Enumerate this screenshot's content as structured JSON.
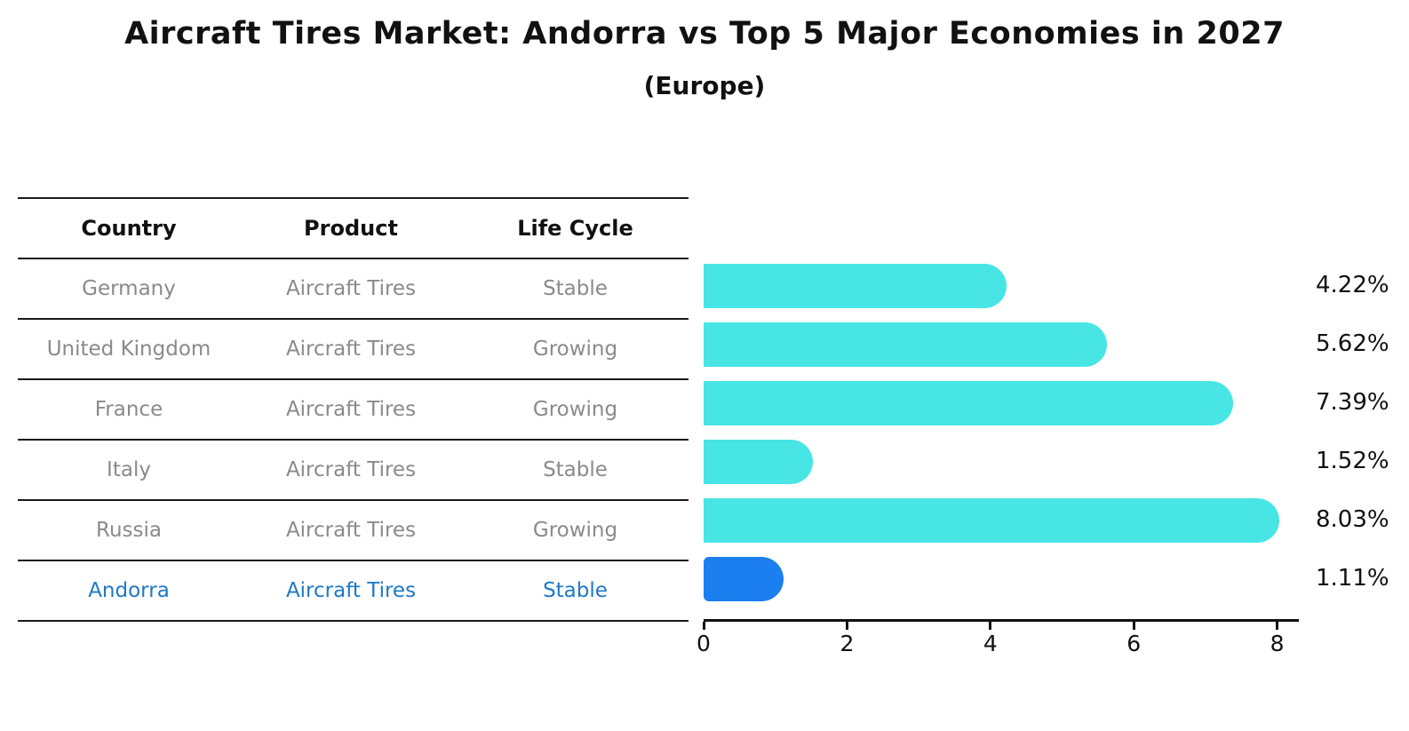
{
  "title": "Aircraft Tires Market: Andorra vs Top 5 Major Economies in 2027",
  "subtitle": "(Europe)",
  "table": {
    "columns": [
      "Country",
      "Product",
      "Life Cycle"
    ],
    "rows": [
      {
        "country": "Germany",
        "product": "Aircraft Tires",
        "life_cycle": "Stable",
        "highlight": false
      },
      {
        "country": "United Kingdom",
        "product": "Aircraft Tires",
        "life_cycle": "Growing",
        "highlight": false
      },
      {
        "country": "France",
        "product": "Aircraft Tires",
        "life_cycle": "Growing",
        "highlight": false
      },
      {
        "country": "Italy",
        "product": "Aircraft Tires",
        "life_cycle": "Stable",
        "highlight": false
      },
      {
        "country": "Russia",
        "product": "Aircraft Tires",
        "life_cycle": "Growing",
        "highlight": false
      },
      {
        "country": "Andorra",
        "product": "Aircraft Tires",
        "life_cycle": "Stable",
        "highlight": true
      }
    ]
  },
  "chart_data": {
    "type": "bar",
    "orientation": "horizontal",
    "categories": [
      "Germany",
      "United Kingdom",
      "France",
      "Italy",
      "Russia",
      "Andorra"
    ],
    "values": [
      4.22,
      5.62,
      7.39,
      1.52,
      8.03,
      1.11
    ],
    "value_labels": [
      "4.22%",
      "5.62%",
      "7.39%",
      "1.52%",
      "8.03%",
      "1.11%"
    ],
    "highlight_category": "Andorra",
    "xlabel": "",
    "ylabel": "",
    "xlim": [
      0,
      8.3
    ],
    "xticks": [
      "0",
      "2",
      "4",
      "6",
      "8"
    ],
    "grid": false,
    "legend": false
  },
  "colors": {
    "bar_default": "#48E5E5",
    "bar_highlight": "#1B7FF0",
    "bar_highlight_border": "#1B7FF0",
    "highlight_text": "#1E78C8",
    "row_text": "#8a8a8a",
    "header_text": "#111111",
    "axis": "#111111"
  }
}
